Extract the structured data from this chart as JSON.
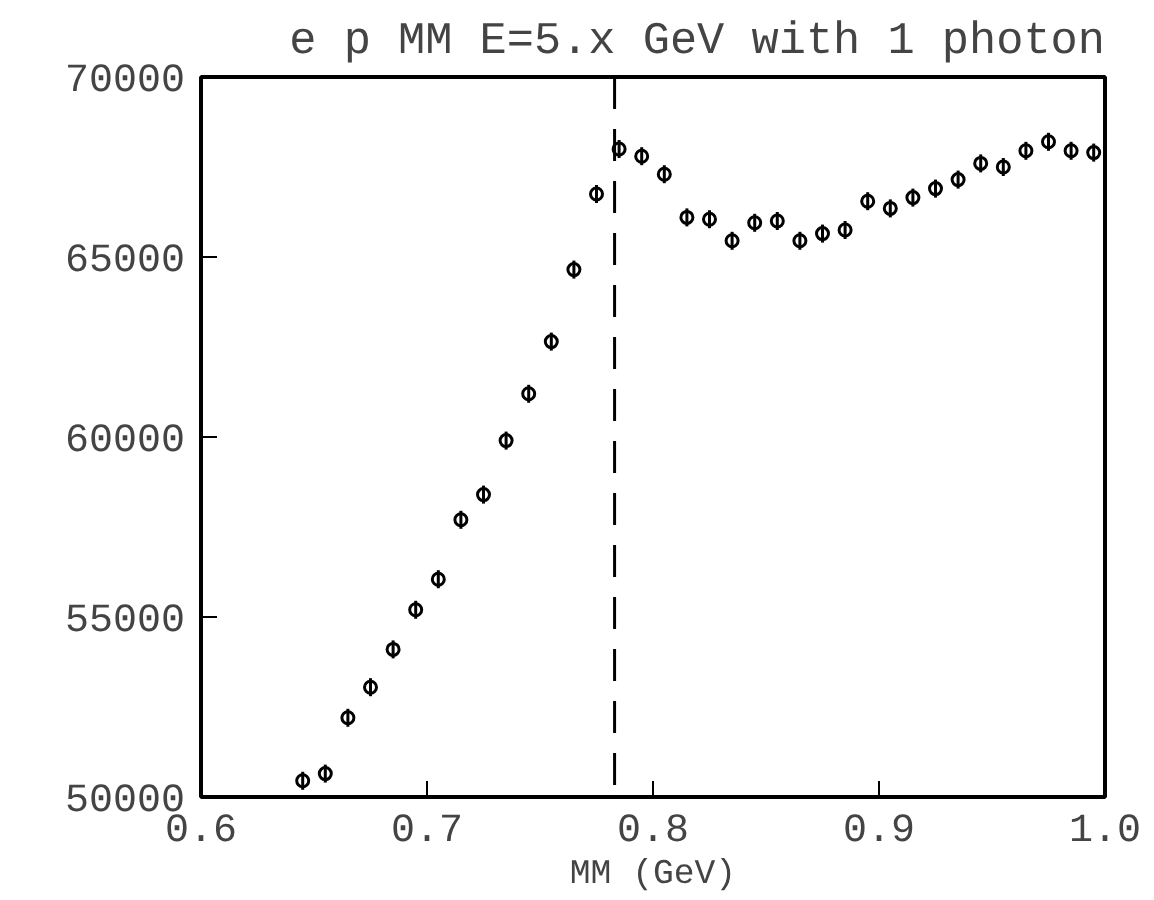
{
  "chart_data": {
    "type": "scatter",
    "title": "e p MM E=5.x GeV with 1 photon",
    "xlabel": "MM (GeV)",
    "x": [
      0.645,
      0.655,
      0.665,
      0.675,
      0.685,
      0.695,
      0.705,
      0.715,
      0.725,
      0.735,
      0.745,
      0.755,
      0.765,
      0.775,
      0.785,
      0.795,
      0.805,
      0.815,
      0.825,
      0.835,
      0.845,
      0.855,
      0.865,
      0.875,
      0.885,
      0.895,
      0.905,
      0.915,
      0.925,
      0.935,
      0.945,
      0.955,
      0.965,
      0.975,
      0.985,
      0.995
    ],
    "series": [
      {
        "color": "#000000",
        "values": [
          50450,
          50650,
          52200,
          53050,
          54100,
          55200,
          56050,
          57700,
          58400,
          59900,
          61200,
          62650,
          64650,
          66750,
          68000,
          67800,
          67300,
          66100,
          66050,
          65450,
          65950,
          66000,
          65450,
          65650,
          65750,
          66550,
          66350,
          66650,
          66900,
          67150,
          67600,
          67500,
          67950,
          68200,
          67950,
          67900
        ],
        "errors": [
          250,
          250,
          250,
          250,
          250,
          250,
          250,
          250,
          250,
          250,
          250,
          250,
          250,
          250,
          250,
          250,
          250,
          250,
          250,
          250,
          250,
          250,
          250,
          250,
          250,
          250,
          250,
          250,
          250,
          250,
          250,
          250,
          250,
          250,
          250,
          250
        ]
      }
    ],
    "marker": "circle",
    "xlim": [
      0.6,
      1.0
    ],
    "ylim": [
      50000,
      70000
    ],
    "xticks": [
      {
        "value": 0.6,
        "label": "0.6"
      },
      {
        "value": 0.7,
        "label": "0.7"
      },
      {
        "value": 0.8,
        "label": "0.8"
      },
      {
        "value": 0.9,
        "label": "0.9"
      },
      {
        "value": 1.0,
        "label": "1.0"
      }
    ],
    "yticks": [
      50000,
      55000,
      60000,
      65000,
      70000
    ],
    "ref_lines": [
      {
        "axis": "x",
        "value": 0.783,
        "color": "#000000",
        "line_style": "dashed"
      }
    ],
    "grid": false
  }
}
